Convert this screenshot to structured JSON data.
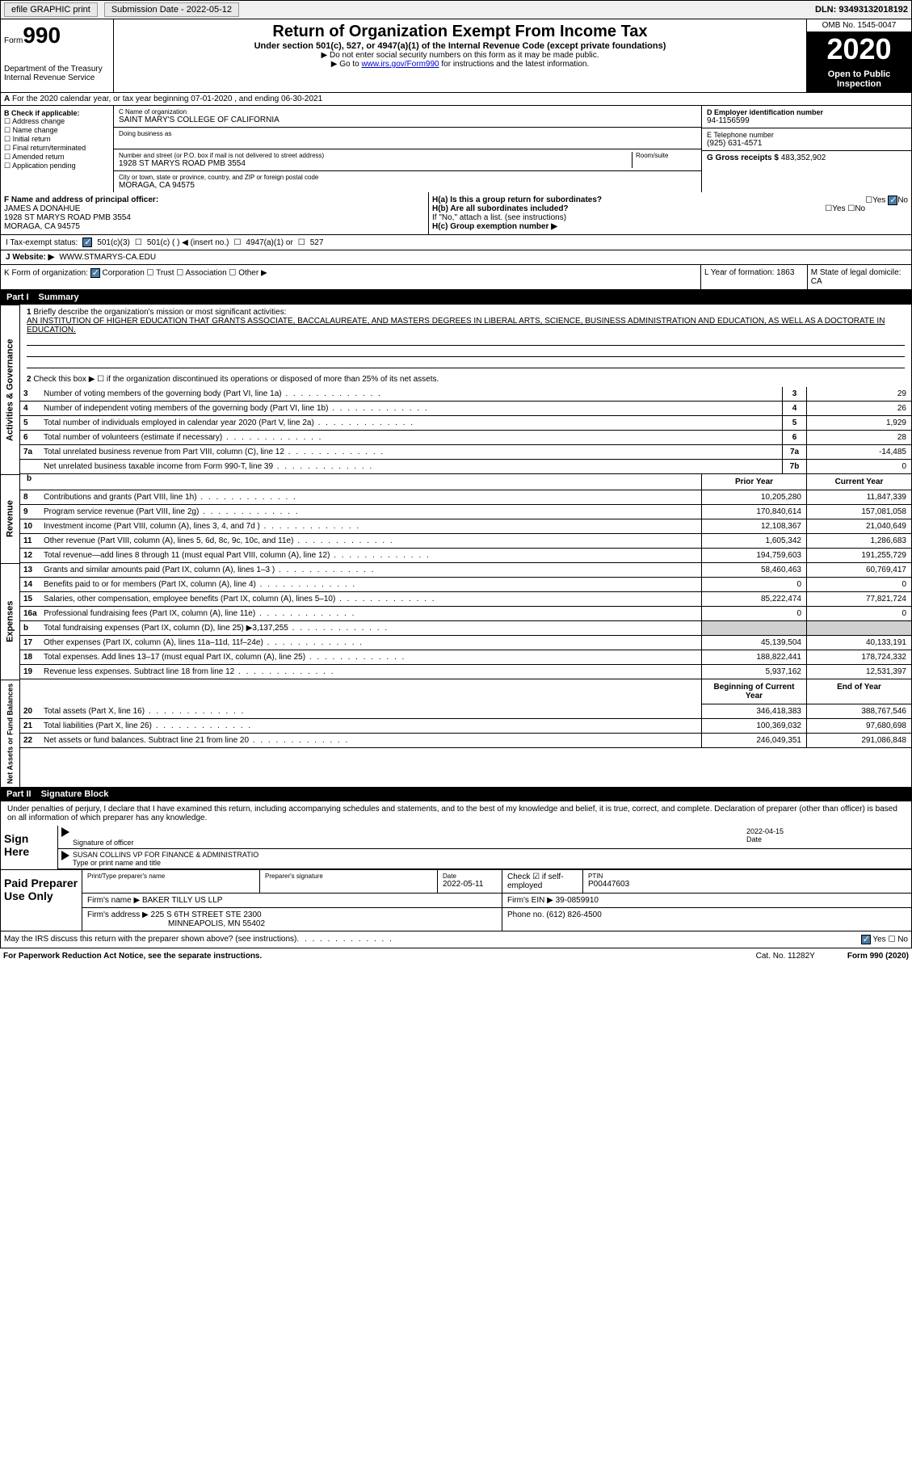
{
  "top_bar": {
    "efile": "efile GRAPHIC print",
    "submission": "Submission Date - 2022-05-12",
    "dln": "DLN: 93493132018192"
  },
  "header": {
    "form_label": "Form",
    "form_number": "990",
    "department": "Department of the Treasury\nInternal Revenue Service",
    "title": "Return of Organization Exempt From Income Tax",
    "subtitle": "Under section 501(c), 527, or 4947(a)(1) of the Internal Revenue Code (except private foundations)",
    "note1": "▶ Do not enter social security numbers on this form as it may be made public.",
    "note2_pre": "▶ Go to ",
    "note2_link": "www.irs.gov/Form990",
    "note2_post": " for instructions and the latest information.",
    "omb": "OMB No. 1545-0047",
    "year": "2020",
    "public": "Open to Public Inspection"
  },
  "row_a": "For the 2020 calendar year, or tax year beginning 07-01-2020   , and ending 06-30-2021",
  "section_b": {
    "header": "B Check if applicable:",
    "items": [
      "Address change",
      "Name change",
      "Initial return",
      "Final return/terminated",
      "Amended return",
      "Application pending"
    ]
  },
  "section_c": {
    "name_label": "C Name of organization",
    "name": "SAINT MARY'S COLLEGE OF CALIFORNIA",
    "dba_label": "Doing business as",
    "street_label": "Number and street (or P.O. box if mail is not delivered to street address)",
    "room_label": "Room/suite",
    "street": "1928 ST MARYS ROAD PMB 3554",
    "city_label": "City or town, state or province, country, and ZIP or foreign postal code",
    "city": "MORAGA, CA  94575"
  },
  "section_de": {
    "d_label": "D Employer identification number",
    "d_value": "94-1156599",
    "e_label": "E Telephone number",
    "e_value": "(925) 631-4571",
    "g_label": "G Gross receipts $",
    "g_value": "483,352,902"
  },
  "section_f": {
    "label": "F Name and address of principal officer:",
    "name": "JAMES A DONAHUE",
    "addr1": "1928 ST MARYS ROAD PMB 3554",
    "addr2": "MORAGA, CA  94575"
  },
  "section_h": {
    "ha": "H(a)  Is this a group return for subordinates?",
    "hb": "H(b)  Are all subordinates included?",
    "hb_note": "If \"No,\" attach a list. (see instructions)",
    "hc": "H(c)  Group exemption number ▶",
    "yes": "Yes",
    "no": "No"
  },
  "row_i": {
    "label": "I  Tax-exempt status:",
    "opts": [
      "501(c)(3)",
      "501(c) (  ) ◀ (insert no.)",
      "4947(a)(1) or",
      "527"
    ]
  },
  "row_j": {
    "label": "J  Website: ▶",
    "value": "WWW.STMARYS-CA.EDU"
  },
  "row_k": {
    "label": "K Form of organization:",
    "opts": [
      "Corporation",
      "Trust",
      "Association",
      "Other ▶"
    ]
  },
  "row_lm": {
    "l": "L Year of formation: 1863",
    "m": "M State of legal domicile: CA"
  },
  "part1": {
    "header": "Part I",
    "title": "Summary",
    "q1": "Briefly describe the organization's mission or most significant activities:",
    "q1_text": "AN INSTITUTION OF HIGHER EDUCATION THAT GRANTS ASSOCIATE, BACCALAUREATE, AND MASTERS DEGREES IN LIBERAL ARTS, SCIENCE, BUSINESS ADMINISTRATION AND EDUCATION, AS WELL AS A DOCTORATE IN EDUCATION.",
    "q2": "Check this box ▶ ☐  if the organization discontinued its operations or disposed of more than 25% of its net assets.",
    "lines_gov": [
      {
        "n": "3",
        "t": "Number of voting members of the governing body (Part VI, line 1a)",
        "b": "3",
        "v": "29"
      },
      {
        "n": "4",
        "t": "Number of independent voting members of the governing body (Part VI, line 1b)",
        "b": "4",
        "v": "26"
      },
      {
        "n": "5",
        "t": "Total number of individuals employed in calendar year 2020 (Part V, line 2a)",
        "b": "5",
        "v": "1,929"
      },
      {
        "n": "6",
        "t": "Total number of volunteers (estimate if necessary)",
        "b": "6",
        "v": "28"
      },
      {
        "n": "7a",
        "t": "Total unrelated business revenue from Part VIII, column (C), line 12",
        "b": "7a",
        "v": "-14,485"
      },
      {
        "n": "",
        "t": "Net unrelated business taxable income from Form 990-T, line 39",
        "b": "7b",
        "v": "0"
      }
    ],
    "col_prior": "Prior Year",
    "col_current": "Current Year",
    "lines_rev": [
      {
        "n": "8",
        "t": "Contributions and grants (Part VIII, line 1h)",
        "p": "10,205,280",
        "c": "11,847,339"
      },
      {
        "n": "9",
        "t": "Program service revenue (Part VIII, line 2g)",
        "p": "170,840,614",
        "c": "157,081,058"
      },
      {
        "n": "10",
        "t": "Investment income (Part VIII, column (A), lines 3, 4, and 7d )",
        "p": "12,108,367",
        "c": "21,040,649"
      },
      {
        "n": "11",
        "t": "Other revenue (Part VIII, column (A), lines 5, 6d, 8c, 9c, 10c, and 11e)",
        "p": "1,605,342",
        "c": "1,286,683"
      },
      {
        "n": "12",
        "t": "Total revenue—add lines 8 through 11 (must equal Part VIII, column (A), line 12)",
        "p": "194,759,603",
        "c": "191,255,729"
      }
    ],
    "lines_exp": [
      {
        "n": "13",
        "t": "Grants and similar amounts paid (Part IX, column (A), lines 1–3 )",
        "p": "58,460,463",
        "c": "60,769,417"
      },
      {
        "n": "14",
        "t": "Benefits paid to or for members (Part IX, column (A), line 4)",
        "p": "0",
        "c": "0"
      },
      {
        "n": "15",
        "t": "Salaries, other compensation, employee benefits (Part IX, column (A), lines 5–10)",
        "p": "85,222,474",
        "c": "77,821,724"
      },
      {
        "n": "16a",
        "t": "Professional fundraising fees (Part IX, column (A), line 11e)",
        "p": "0",
        "c": "0"
      },
      {
        "n": "b",
        "t": "Total fundraising expenses (Part IX, column (D), line 25) ▶3,137,255",
        "p": "",
        "c": "",
        "gray": true
      },
      {
        "n": "17",
        "t": "Other expenses (Part IX, column (A), lines 11a–11d, 11f–24e)",
        "p": "45,139,504",
        "c": "40,133,191"
      },
      {
        "n": "18",
        "t": "Total expenses. Add lines 13–17 (must equal Part IX, column (A), line 25)",
        "p": "188,822,441",
        "c": "178,724,332"
      },
      {
        "n": "19",
        "t": "Revenue less expenses. Subtract line 18 from line 12",
        "p": "5,937,162",
        "c": "12,531,397"
      }
    ],
    "col_begin": "Beginning of Current Year",
    "col_end": "End of Year",
    "lines_net": [
      {
        "n": "20",
        "t": "Total assets (Part X, line 16)",
        "p": "346,418,383",
        "c": "388,767,546"
      },
      {
        "n": "21",
        "t": "Total liabilities (Part X, line 26)",
        "p": "100,369,032",
        "c": "97,680,698"
      },
      {
        "n": "22",
        "t": "Net assets or fund balances. Subtract line 21 from line 20",
        "p": "246,049,351",
        "c": "291,086,848"
      }
    ],
    "side_gov": "Activities & Governance",
    "side_rev": "Revenue",
    "side_exp": "Expenses",
    "side_net": "Net Assets or Fund Balances"
  },
  "part2": {
    "header": "Part II",
    "title": "Signature Block",
    "declaration": "Under penalties of perjury, I declare that I have examined this return, including accompanying schedules and statements, and to the best of my knowledge and belief, it is true, correct, and complete. Declaration of preparer (other than officer) is based on all information of which preparer has any knowledge.",
    "sign_here": "Sign Here",
    "sig_officer": "Signature of officer",
    "sig_date": "2022-04-15",
    "sig_date_label": "Date",
    "officer_name": "SUSAN COLLINS VP FOR FINANCE & ADMINISTRATIO",
    "officer_label": "Type or print name and title",
    "paid_label": "Paid Preparer Use Only",
    "prep_name_label": "Print/Type preparer's name",
    "prep_sig_label": "Preparer's signature",
    "prep_date_label": "Date",
    "prep_date": "2022-05-11",
    "check_label": "Check ☑ if self-employed",
    "ptin_label": "PTIN",
    "ptin": "P00447603",
    "firm_name_label": "Firm's name    ▶",
    "firm_name": "BAKER TILLY US LLP",
    "firm_ein_label": "Firm's EIN ▶",
    "firm_ein": "39-0859910",
    "firm_addr_label": "Firm's address ▶",
    "firm_addr1": "225 S 6TH STREET STE 2300",
    "firm_addr2": "MINNEAPOLIS, MN  55402",
    "phone_label": "Phone no.",
    "phone": "(612) 826-4500",
    "discuss": "May the IRS discuss this return with the preparer shown above? (see instructions)",
    "yes": "Yes",
    "no": "No"
  },
  "footer": {
    "notice": "For Paperwork Reduction Act Notice, see the separate instructions.",
    "cat": "Cat. No. 11282Y",
    "form": "Form 990 (2020)"
  }
}
